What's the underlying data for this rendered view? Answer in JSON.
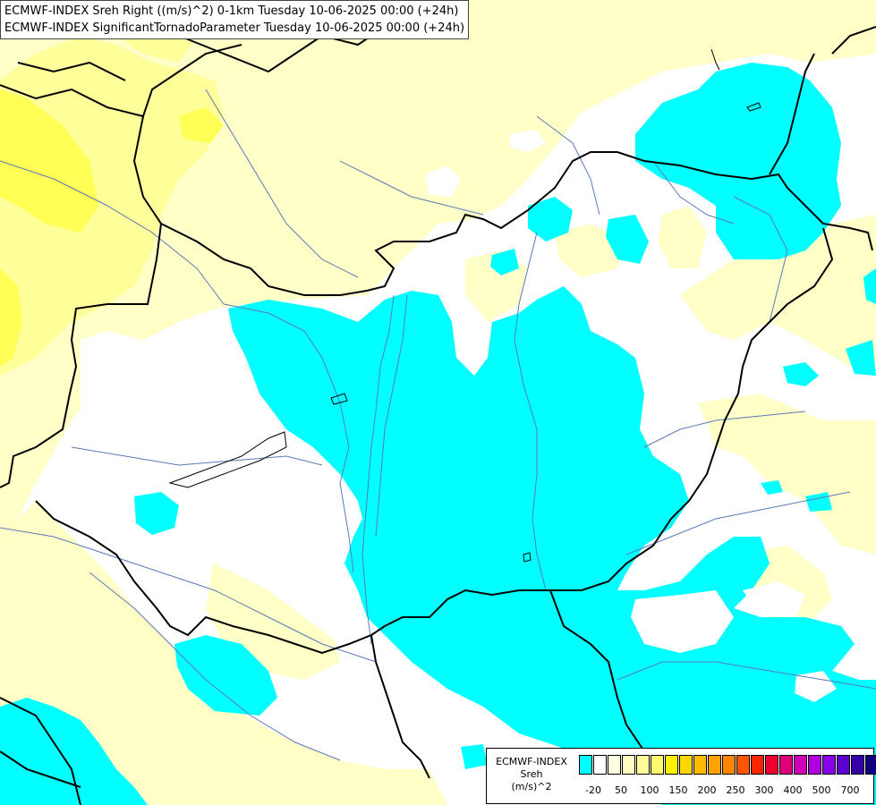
{
  "titles": {
    "line1": "ECMWF-INDEX Sreh Right ((m/s)^2) 0-1km Tuesday 10-06-2025 00:00 (+24h)",
    "line2": "ECMWF-INDEX SignificantTornadoParameter Tuesday 10-06-2025 00:00 (+24h)"
  },
  "legend": {
    "line1": "ECMWF-INDEX",
    "line2": "Sreh",
    "line3": "(m/s)^2",
    "colors": [
      "#00ffff",
      "#ffffff",
      "#fffee0",
      "#fffdc0",
      "#fffb9a",
      "#fff970",
      "#fff200",
      "#ffd700",
      "#ffbb00",
      "#ffa200",
      "#ff8400",
      "#ff5500",
      "#ff2400",
      "#f0002e",
      "#e0007c",
      "#d000b8",
      "#b000e0",
      "#8800e8",
      "#5c00d0",
      "#3600a8",
      "#100080"
    ],
    "ticks": [
      "-20",
      "50",
      "100",
      "150",
      "200",
      "250",
      "300",
      "400",
      "500",
      "700"
    ]
  },
  "colors": {
    "cyan": "#00ffff",
    "pale_yellow": "#ffffc8",
    "light_yellow": "#ffff99",
    "yellow": "#ffff55",
    "river": "#5a7ab8",
    "border": "#000000"
  }
}
